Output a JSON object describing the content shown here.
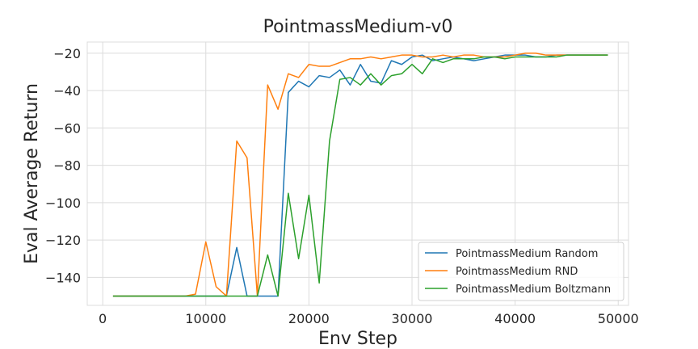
{
  "chart_data": {
    "type": "line",
    "title": "PointmassMedium-v0",
    "xlabel": "Env Step",
    "ylabel": "Eval Average Return",
    "xlim": [
      -1500,
      51000
    ],
    "ylim": [
      -155,
      -14
    ],
    "xticks": [
      0,
      10000,
      20000,
      30000,
      40000,
      50000
    ],
    "xtick_labels": [
      "0",
      "10000",
      "20000",
      "30000",
      "40000",
      "50000"
    ],
    "yticks": [
      -140,
      -120,
      -100,
      -80,
      -60,
      -40,
      -20
    ],
    "ytick_labels": [
      "−140",
      "−120",
      "−100",
      "−80",
      "−60",
      "−40",
      "−20"
    ],
    "grid": true,
    "legend_position": "lower-right",
    "x": [
      1000,
      2000,
      3000,
      4000,
      5000,
      6000,
      7000,
      8000,
      9000,
      10000,
      11000,
      12000,
      13000,
      14000,
      15000,
      16000,
      17000,
      18000,
      19000,
      20000,
      21000,
      22000,
      23000,
      24000,
      25000,
      26000,
      27000,
      28000,
      29000,
      30000,
      31000,
      32000,
      33000,
      34000,
      35000,
      36000,
      37000,
      38000,
      39000,
      40000,
      41000,
      42000,
      43000,
      44000,
      45000,
      46000,
      47000,
      48000,
      49000
    ],
    "series": [
      {
        "name": "PointmassMedium Random",
        "color": "#1f77b4",
        "values": [
          -150,
          -150,
          -150,
          -150,
          -150,
          -150,
          -150,
          -150,
          -150,
          -150,
          -150,
          -150,
          -124,
          -150,
          -150,
          -150,
          -150,
          -41,
          -35,
          -38,
          -32,
          -33,
          -29,
          -37,
          -26,
          -35,
          -36,
          -24,
          -26,
          -22,
          -21,
          -24,
          -23,
          -22,
          -23,
          -24,
          -23,
          -22,
          -21,
          -21,
          -21,
          -22,
          -22,
          -21,
          -21,
          -21,
          -21,
          -21,
          -21
        ]
      },
      {
        "name": "PointmassMedium RND",
        "color": "#ff7f0e",
        "values": [
          -150,
          -150,
          -150,
          -150,
          -150,
          -150,
          -150,
          -150,
          -149,
          -121,
          -145,
          -150,
          -67,
          -76,
          -150,
          -37,
          -50,
          -31,
          -33,
          -26,
          -27,
          -27,
          -25,
          -23,
          -23,
          -22,
          -23,
          -22,
          -21,
          -21,
          -22,
          -22,
          -21,
          -22,
          -21,
          -21,
          -22,
          -22,
          -22,
          -21,
          -20,
          -20,
          -21,
          -21,
          -21,
          -21,
          -21,
          -21,
          -21
        ]
      },
      {
        "name": "PointmassMedium Boltzmann",
        "color": "#2ca02c",
        "values": [
          -150,
          -150,
          -150,
          -150,
          -150,
          -150,
          -150,
          -150,
          -150,
          -150,
          -150,
          -150,
          -150,
          -150,
          -150,
          -128,
          -150,
          -95,
          -130,
          -96,
          -143,
          -67,
          -34,
          -33,
          -37,
          -31,
          -37,
          -32,
          -31,
          -26,
          -31,
          -23,
          -25,
          -23,
          -23,
          -23,
          -22,
          -22,
          -23,
          -22,
          -22,
          -22,
          -22,
          -22,
          -21,
          -21,
          -21,
          -21,
          -21
        ]
      }
    ]
  }
}
